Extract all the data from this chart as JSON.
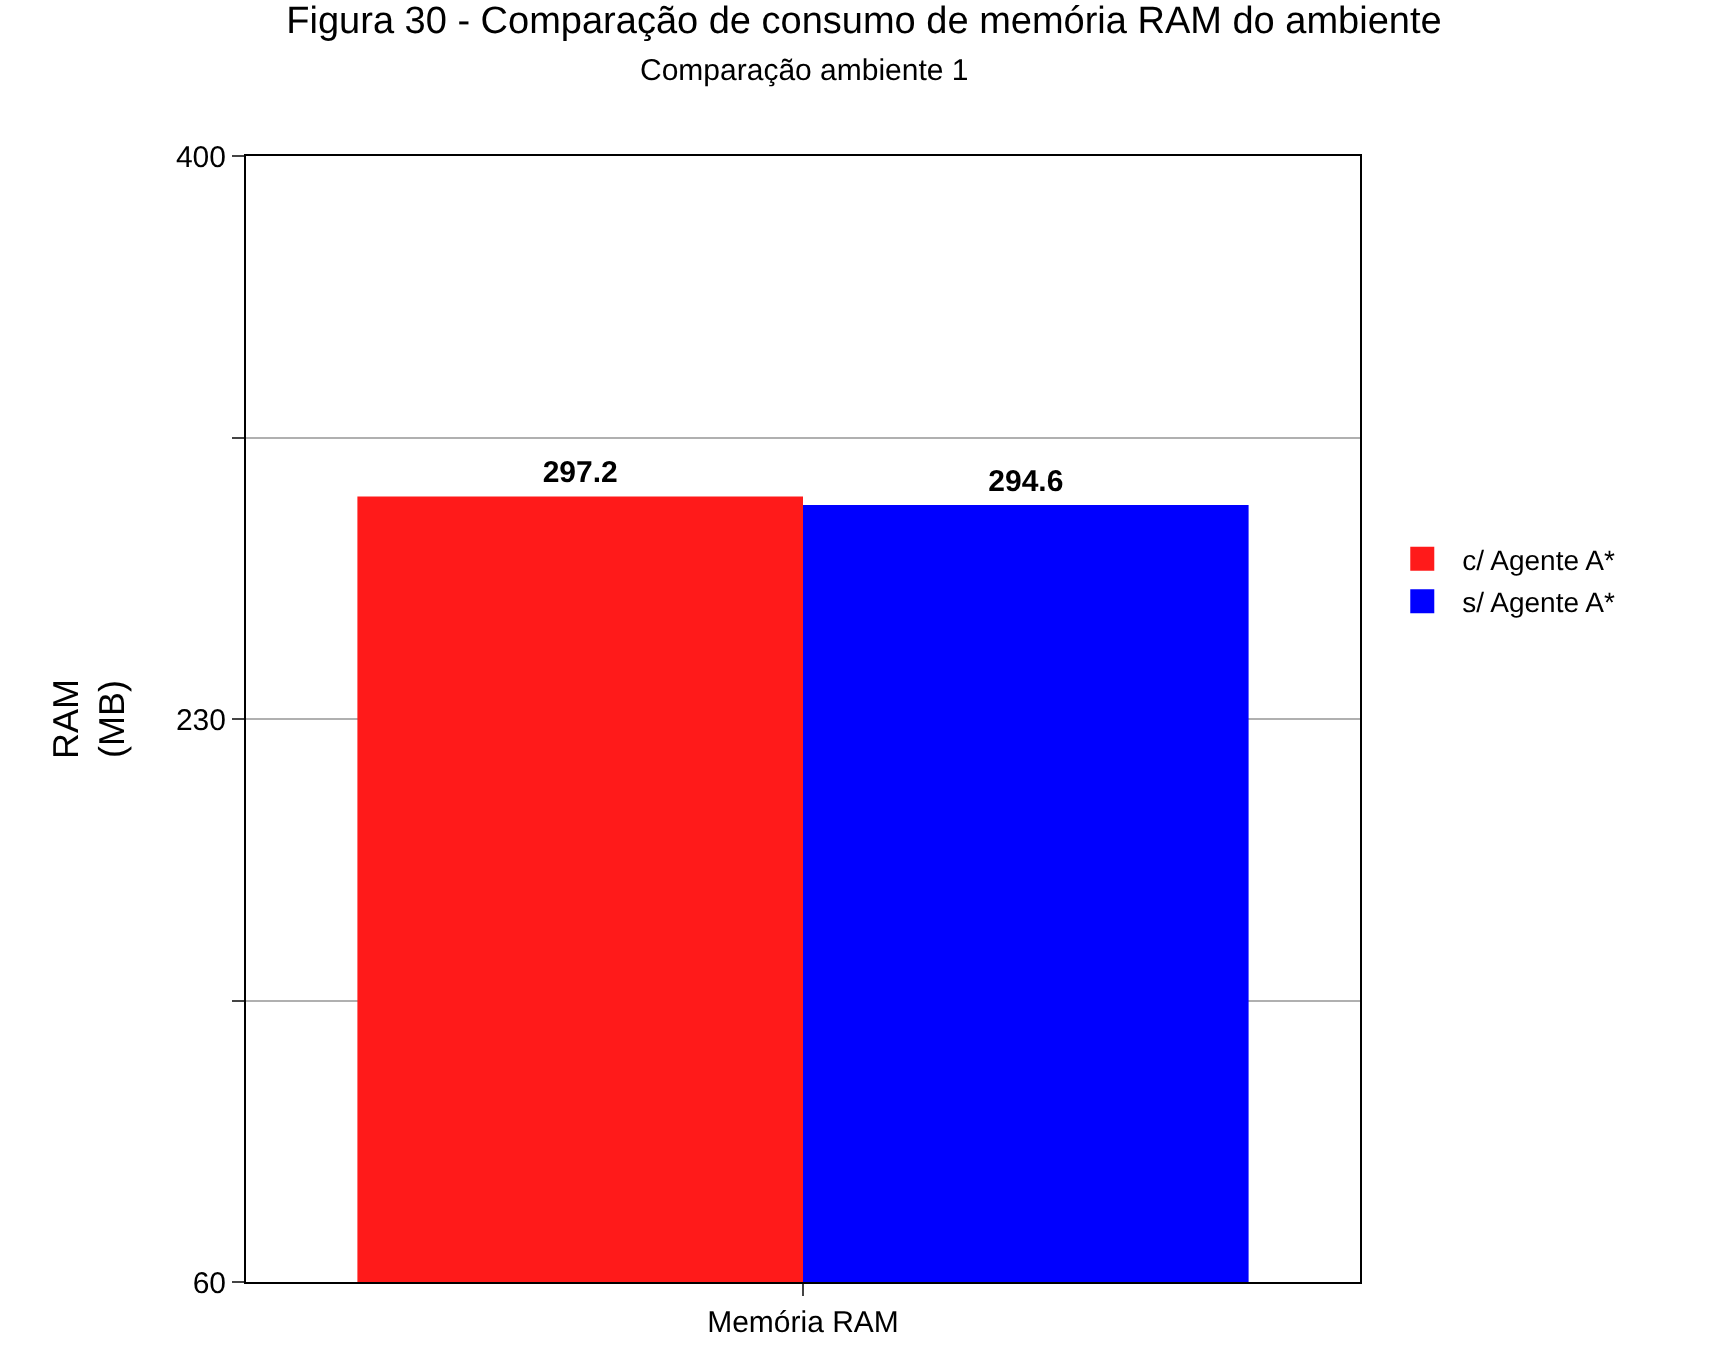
{
  "chart_data": {
    "type": "bar",
    "title": "Figura 30 - Comparação de consumo de memória RAM do ambiente",
    "subtitle": "Comparação ambiente 1",
    "ylabel": "RAM\n(MB)",
    "categories": [
      "Memória RAM"
    ],
    "series": [
      {
        "name": "c/ Agente A*",
        "color": "#ff1a1a",
        "values": [
          297.2
        ]
      },
      {
        "name": "s/ Agente A*",
        "color": "#0000ff",
        "values": [
          294.6
        ]
      }
    ],
    "ylim": [
      60,
      400
    ],
    "yticks": [
      60,
      {
        "value": 145,
        "label": null
      },
      230,
      {
        "value": 315,
        "label": null
      },
      400
    ],
    "grid": true,
    "legend": "right",
    "data_labels": true
  }
}
